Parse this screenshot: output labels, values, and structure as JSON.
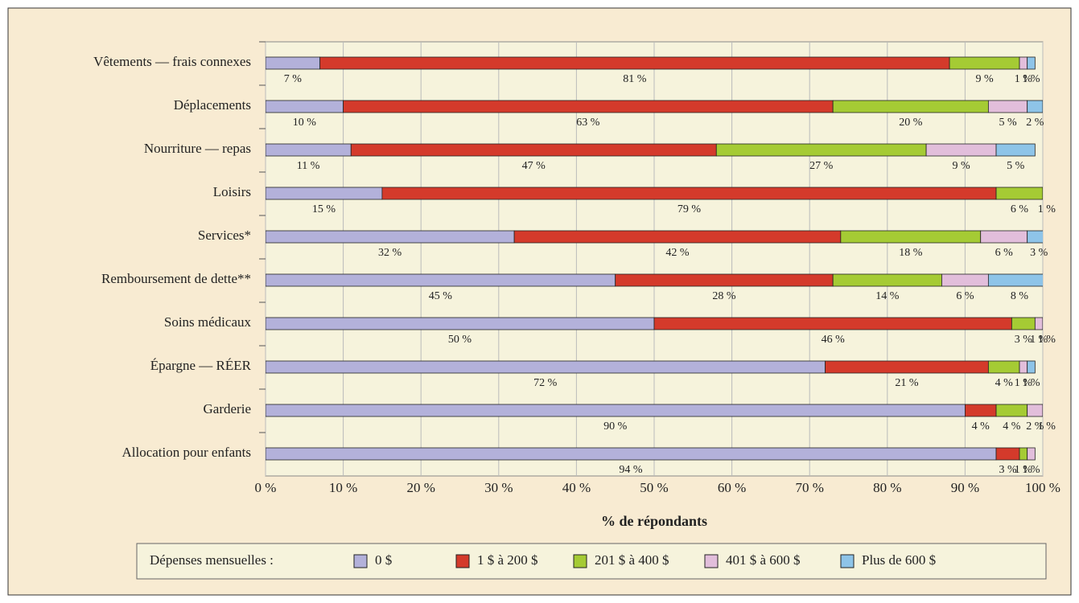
{
  "chart_data": {
    "type": "stacked-barh",
    "categories": [
      "Vêtements — frais connexes",
      "Déplacements",
      "Nourriture — repas",
      "Loisirs",
      "Services*",
      "Remboursement de dette**",
      "Soins médicaux",
      "Épargne — RÉER",
      "Garderie",
      "Allocation pour enfants"
    ],
    "series": [
      {
        "name": "0 $",
        "color": "#b3b1da",
        "values": [
          7,
          10,
          11,
          15,
          32,
          45,
          50,
          72,
          90,
          94
        ],
        "value_labels": [
          "7 %",
          "10 %",
          "11 %",
          "15 %",
          "32 %",
          "45 %",
          "50 %",
          "72 %",
          "90 %",
          "94 %"
        ]
      },
      {
        "name": "1 $ à 200 $",
        "color": "#d43a2b",
        "values": [
          81,
          63,
          47,
          79,
          42,
          28,
          46,
          21,
          4,
          3
        ],
        "value_labels": [
          "81 %",
          "63 %",
          "47 %",
          "79 %",
          "42 %",
          "28 %",
          "46 %",
          "21 %",
          "4 %",
          "3 %"
        ]
      },
      {
        "name": "201 $ à 400 $",
        "color": "#a5cb34",
        "values": [
          9,
          20,
          27,
          6,
          18,
          14,
          3,
          4,
          4,
          1
        ],
        "value_labels": [
          "9 %",
          "20 %",
          "27 %",
          "6 %",
          "18 %",
          "14 %",
          "3 %",
          "4 %",
          "4 %",
          "1 %"
        ]
      },
      {
        "name": "401 $ à 600 $",
        "color": "#e2bedb",
        "values": [
          1,
          5,
          9,
          1,
          6,
          6,
          1,
          1,
          2,
          1
        ],
        "value_labels": [
          "1 %",
          "5 %",
          "9 %",
          "1 %",
          "6 %",
          "6 %",
          "1 %",
          "1 %",
          "2 %",
          "1 %"
        ]
      },
      {
        "name": "Plus de 600 $",
        "color": "#8ec4e8",
        "values": [
          1,
          2,
          5,
          null,
          3,
          8,
          1,
          1,
          1,
          null
        ],
        "value_labels": [
          "1 %",
          "2 %",
          "5 %",
          null,
          "3 %",
          "8 %",
          "1 %",
          "1 %",
          "1 %",
          null
        ]
      }
    ],
    "xlim": [
      0,
      100
    ],
    "xticks": [
      {
        "value": 0,
        "label": "0 %"
      },
      {
        "value": 10,
        "label": "10 %"
      },
      {
        "value": 20,
        "label": "20 %"
      },
      {
        "value": 30,
        "label": "30 %"
      },
      {
        "value": 40,
        "label": "40 %"
      },
      {
        "value": 50,
        "label": "50 %"
      },
      {
        "value": 60,
        "label": "60 %"
      },
      {
        "value": 70,
        "label": "70 %"
      },
      {
        "value": 80,
        "label": "80 %"
      },
      {
        "value": 90,
        "label": "90 %"
      },
      {
        "value": 100,
        "label": "100 %"
      }
    ],
    "xlabel": "% de répondants",
    "legend_title": "Dépenses mensuelles :",
    "grid": true
  }
}
